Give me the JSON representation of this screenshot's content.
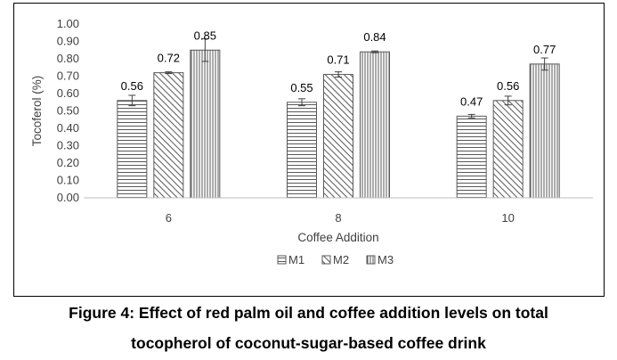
{
  "chart_data": {
    "type": "bar",
    "categories": [
      "6",
      "8",
      "10"
    ],
    "series": [
      {
        "name": "M1",
        "pattern": "horizontal-lines",
        "values": [
          0.56,
          0.55,
          0.47
        ],
        "errors": [
          0.03,
          0.02,
          0.01
        ]
      },
      {
        "name": "M2",
        "pattern": "diagonal-hatch",
        "values": [
          0.72,
          0.71,
          0.56
        ],
        "errors": [
          0.005,
          0.015,
          0.025
        ]
      },
      {
        "name": "M3",
        "pattern": "vertical-lines",
        "values": [
          0.85,
          0.84,
          0.77
        ],
        "errors": [
          0.065,
          0.005,
          0.035
        ]
      }
    ],
    "data_labels": [
      [
        "0.56",
        "0.55",
        "0.47"
      ],
      [
        "0.72",
        "0.71",
        "0.56"
      ],
      [
        "0.85",
        "0.84",
        "0.77"
      ]
    ],
    "xlabel": "Coffee Addition",
    "ylabel": "Tocoferol (%)",
    "ylim": [
      0,
      1.0
    ],
    "y_ticks": [
      "0.00",
      "0.10",
      "0.20",
      "0.30",
      "0.40",
      "0.50",
      "0.60",
      "0.70",
      "0.80",
      "0.90",
      "1.00"
    ],
    "grid": false,
    "legend_position": "bottom",
    "bar_fill": "#ffffff",
    "stroke_color": "#595959"
  },
  "caption": {
    "line1": "Figure 4: Effect of red palm oil and coffee addition levels on total",
    "line2": "tocopherol of coconut-sugar-based coffee drink"
  }
}
